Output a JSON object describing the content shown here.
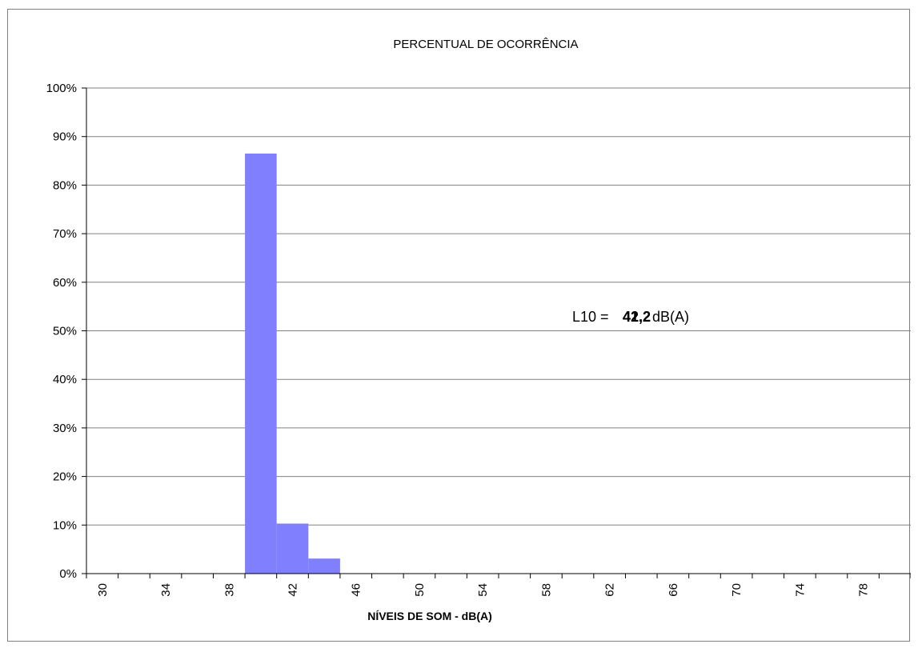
{
  "chart_data": {
    "type": "bar",
    "title": "PERCENTUAL DE OCORRÊNCIA",
    "xlabel": "NÍVEIS DE SOM - dB(A)",
    "ylabel": "",
    "x_tick_labels": [
      "30",
      "34",
      "38",
      "42",
      "46",
      "50",
      "54",
      "58",
      "62",
      "66",
      "70",
      "74",
      "78"
    ],
    "categories": [
      30,
      32,
      34,
      36,
      38,
      40,
      42,
      44,
      46,
      48,
      50,
      52,
      54,
      56,
      58,
      60,
      62,
      64,
      66,
      68,
      70,
      72,
      74,
      76,
      78,
      80
    ],
    "values": [
      0,
      0,
      0,
      0,
      0,
      0.865,
      0.103,
      0.031,
      0,
      0,
      0,
      0,
      0,
      0,
      0,
      0,
      0,
      0,
      0,
      0,
      0,
      0,
      0,
      0,
      0,
      0
    ],
    "ylim": [
      0,
      1
    ],
    "y_tick_labels": [
      "0%",
      "10%",
      "20%",
      "30%",
      "40%",
      "50%",
      "60%",
      "70%",
      "80%",
      "90%",
      "100%"
    ],
    "grid": "horizontal",
    "bar_color": "#8080ff",
    "annotation": {
      "prefix": "L10 =",
      "value_overlap_a": "42,2",
      "value_overlap_b": "41,2",
      "unit": "dB(A)"
    }
  }
}
